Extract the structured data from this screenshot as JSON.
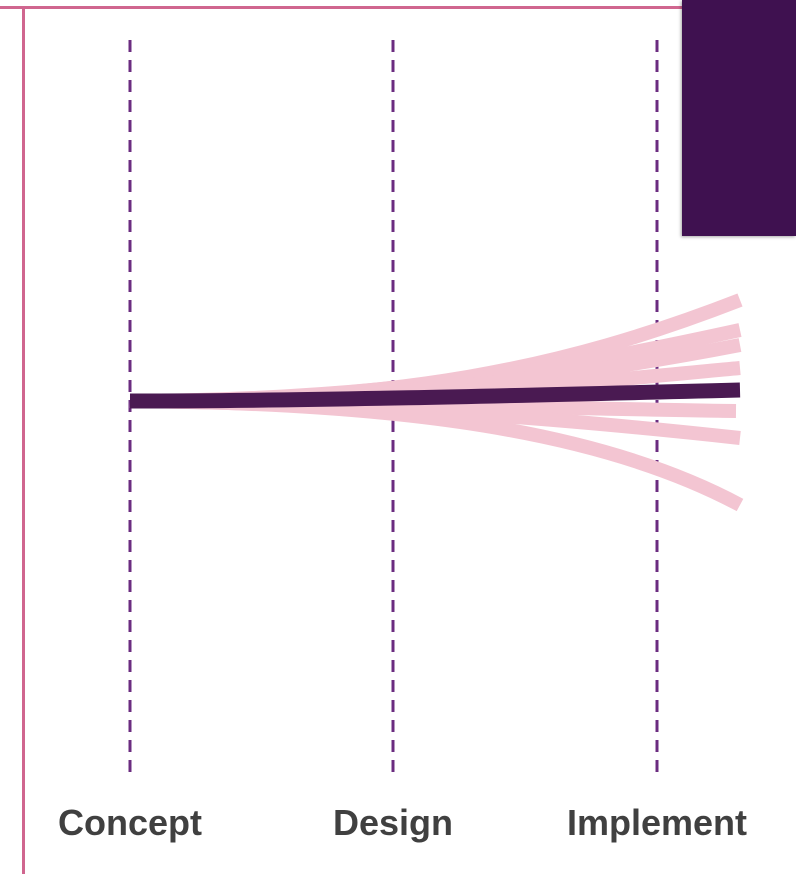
{
  "colors": {
    "frame": "#D0668F",
    "divider": "#6B2C80",
    "dark_accent": "#3F1150",
    "main_path": "#4A1A52",
    "alt_paths": "#F3C5D2",
    "label_text": "#404040"
  },
  "phases": [
    {
      "label": "Concept"
    },
    {
      "label": "Design"
    },
    {
      "label": "Implement"
    }
  ]
}
